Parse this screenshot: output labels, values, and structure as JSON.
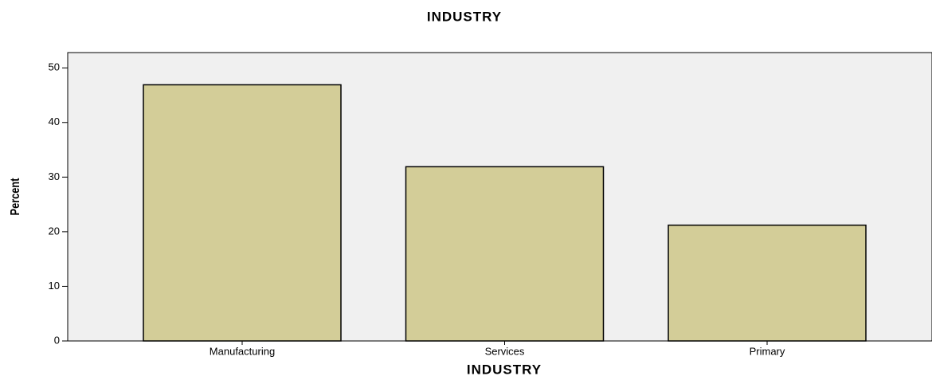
{
  "chart_data": {
    "type": "bar",
    "title": "INDUSTRY",
    "x_label": "INDUSTRY",
    "y_label": "Percent",
    "categories": [
      "Manufacturing",
      "Services",
      "Primary"
    ],
    "values": [
      46.9,
      31.9,
      21.2
    ],
    "color": "#d3cd98",
    "ylim": [
      0,
      52.8
    ],
    "yticks": [
      0,
      10,
      20,
      30,
      40,
      50
    ],
    "background": "#f0f0f0"
  }
}
